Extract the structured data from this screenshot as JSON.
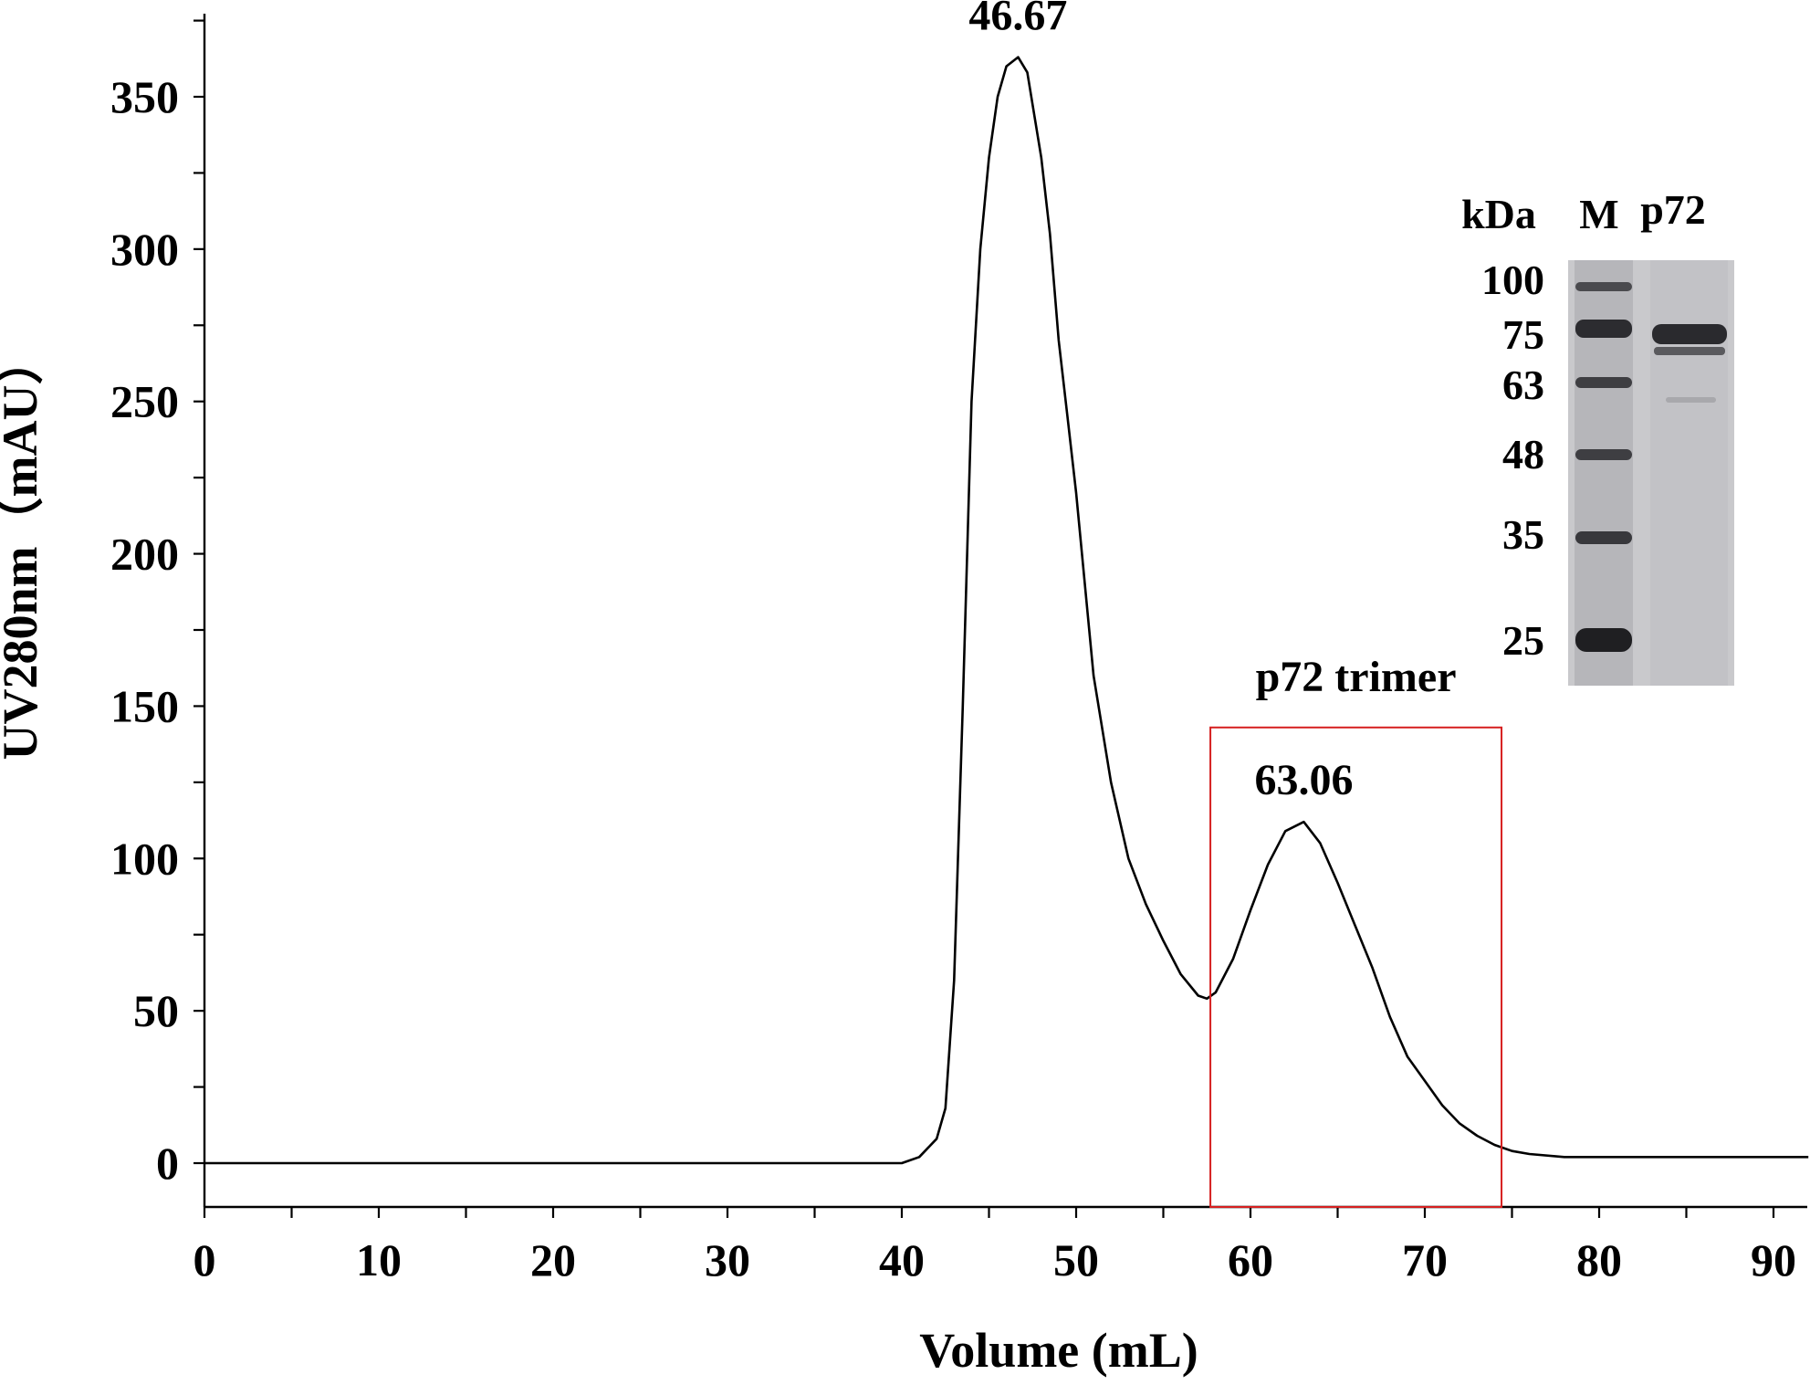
{
  "chart_data": {
    "type": "line",
    "xlabel": "Volume (mL)",
    "ylabel": "UV280nm（mAU）",
    "xlim": [
      0,
      92
    ],
    "ylim": [
      -15,
      375
    ],
    "x_ticks": [
      0,
      10,
      20,
      30,
      40,
      50,
      60,
      70,
      80,
      90
    ],
    "y_ticks": [
      0,
      50,
      100,
      150,
      200,
      250,
      300,
      350
    ],
    "grid": false,
    "series": [
      {
        "x": [
          0,
          10,
          20,
          30,
          38,
          40,
          41,
          42,
          42.5,
          43,
          43.5,
          44,
          44.5,
          45,
          45.5,
          46,
          46.67,
          47.2,
          48,
          48.5,
          49,
          49.5,
          50,
          51,
          52,
          53,
          54,
          55,
          56,
          57,
          57.5,
          58,
          59,
          60,
          61,
          62,
          63.06,
          64,
          65,
          66,
          67,
          68,
          69,
          70,
          71,
          72,
          73,
          74,
          75,
          76,
          78,
          80,
          85,
          92
        ],
        "y": [
          0,
          0,
          0,
          0,
          0,
          0,
          2,
          8,
          18,
          60,
          150,
          250,
          300,
          330,
          350,
          360,
          363,
          358,
          330,
          305,
          270,
          245,
          220,
          160,
          125,
          100,
          85,
          73,
          62,
          55,
          54,
          56,
          67,
          83,
          98,
          109,
          112,
          105,
          92,
          78,
          64,
          48,
          35,
          27,
          19,
          13,
          9,
          6,
          4,
          3,
          2,
          2,
          2,
          2
        ]
      }
    ],
    "peak_labels": [
      {
        "x": 46.67,
        "y": 363,
        "text": "46.67"
      },
      {
        "x": 63.06,
        "y": 112,
        "text": "63.06"
      }
    ],
    "highlight_box": {
      "x0": 57.7,
      "x1": 74.4,
      "y0": -15,
      "y1": 143,
      "color": "#d62020",
      "label": "p72 trimer"
    }
  },
  "gel_inset": {
    "unit_label": "kDa",
    "lane_labels": [
      "M",
      "p72"
    ],
    "marker_sizes": [
      "100",
      "75",
      "63",
      "48",
      "35",
      "25"
    ]
  }
}
